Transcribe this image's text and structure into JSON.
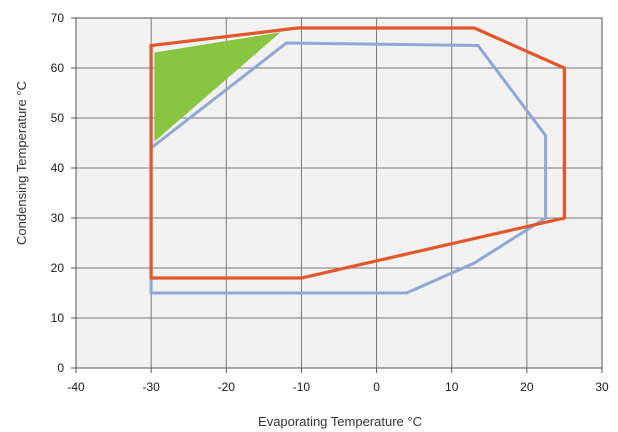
{
  "chart_data": {
    "type": "line",
    "title": "",
    "xlabel": "Evaporating Temperature °C",
    "ylabel": "Condensing Temperature °C",
    "xlim": [
      -40,
      30
    ],
    "ylim": [
      0,
      70
    ],
    "x_ticks": [
      -40,
      -30,
      -20,
      -10,
      0,
      10,
      20,
      30
    ],
    "y_ticks": [
      0,
      10,
      20,
      30,
      40,
      50,
      60,
      70
    ],
    "x_tick_labels": [
      "-40",
      "-30",
      "-20",
      "-10",
      "0",
      "10",
      "20",
      "30"
    ],
    "y_tick_labels": [
      "0",
      "10",
      "20",
      "30",
      "40",
      "50",
      "60",
      "70"
    ],
    "grid": true,
    "background": "#f2f2f2",
    "series": [
      {
        "key": "red",
        "kind": "closed-envelope",
        "color": "#e2572b",
        "points": [
          [
            -30,
            44
          ],
          [
            -30,
            64.5
          ],
          [
            -10.5,
            68
          ],
          [
            13,
            68
          ],
          [
            25,
            60
          ],
          [
            25,
            30
          ],
          [
            -10,
            18
          ],
          [
            -30,
            18
          ]
        ]
      },
      {
        "key": "blue",
        "kind": "closed-envelope",
        "color": "#8fa8d4",
        "points": [
          [
            -30,
            44
          ],
          [
            -12,
            65
          ],
          [
            13.5,
            64.5
          ],
          [
            22.5,
            46.5
          ],
          [
            22.5,
            30
          ],
          [
            13,
            21
          ],
          [
            4,
            15
          ],
          [
            -30,
            15
          ]
        ]
      },
      {
        "key": "green",
        "kind": "filled-region",
        "color": "#88c540",
        "points": [
          [
            -29.5,
            63
          ],
          [
            -13,
            67
          ],
          [
            -29.5,
            45.5
          ]
        ]
      }
    ]
  }
}
